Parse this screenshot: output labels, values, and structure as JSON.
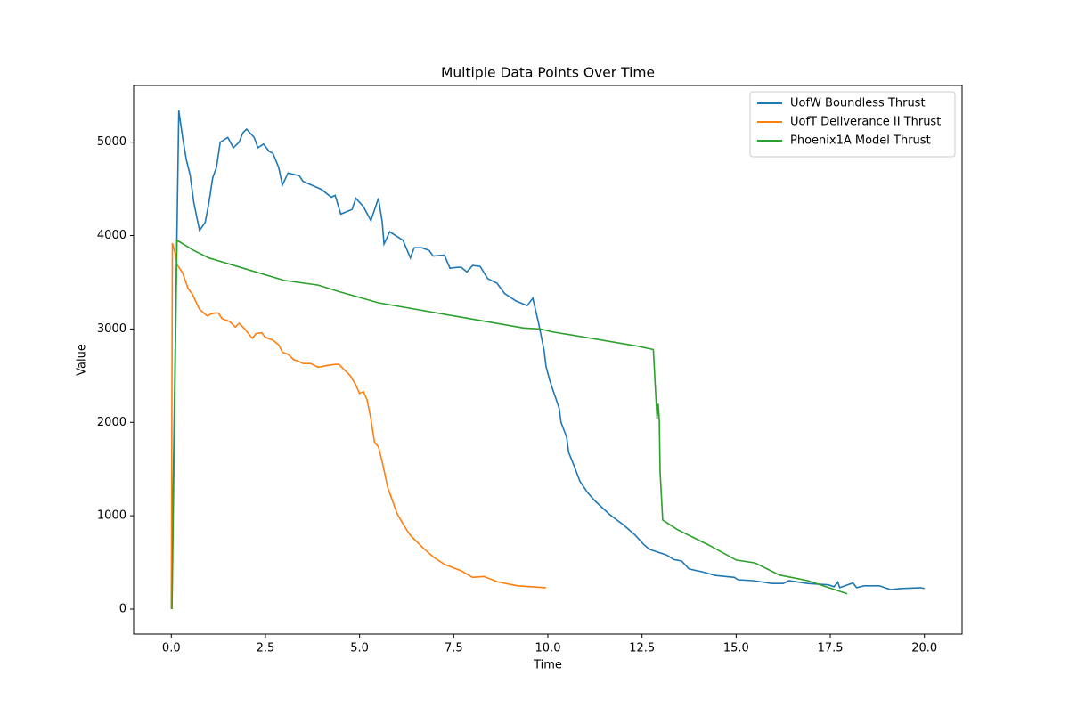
{
  "chart_data": {
    "type": "line",
    "title": "Multiple Data Points Over Time",
    "x_label": "Time",
    "y_label": "Value",
    "xlim": [
      -1.0,
      21.0
    ],
    "ylim": [
      -267,
      5607
    ],
    "xticks": [
      {
        "value": 0,
        "label": "0.0"
      },
      {
        "value": 2.5,
        "label": "2.5"
      },
      {
        "value": 5,
        "label": "5.0"
      },
      {
        "value": 7.5,
        "label": "7.5"
      },
      {
        "value": 10,
        "label": "10.0"
      },
      {
        "value": 12.5,
        "label": "12.5"
      },
      {
        "value": 15,
        "label": "15.0"
      },
      {
        "value": 17.5,
        "label": "17.5"
      },
      {
        "value": 20,
        "label": "20.0"
      }
    ],
    "yticks": [
      0,
      1000,
      2000,
      3000,
      4000,
      5000
    ],
    "grid": false,
    "legend": "upper right",
    "series": [
      {
        "name": "UofW Boundless Thrust",
        "color": "#1f77b4",
        "x": [
          0,
          0.2,
          0.3,
          0.4,
          0.5,
          0.6,
          0.75,
          0.9,
          1.0,
          1.1,
          1.2,
          1.3,
          1.5,
          1.65,
          1.8,
          1.9,
          2.0,
          2.2,
          2.3,
          2.45,
          2.6,
          2.7,
          2.85,
          2.95,
          3.1,
          3.4,
          3.5,
          3.9,
          4.0,
          4.25,
          4.35,
          4.5,
          4.8,
          4.9,
          5.1,
          5.3,
          5.5,
          5.6,
          5.65,
          5.8,
          6.15,
          6.35,
          6.45,
          6.65,
          6.85,
          6.95,
          7.25,
          7.4,
          7.6,
          7.7,
          7.85,
          8.0,
          8.2,
          8.4,
          8.65,
          8.85,
          9.15,
          9.45,
          9.6,
          9.75,
          9.9,
          9.95,
          10.05,
          10.15,
          10.25,
          10.3,
          10.35,
          10.5,
          10.55,
          10.7,
          10.85,
          11.05,
          11.25,
          11.65,
          12.0,
          12.3,
          12.55,
          12.7,
          13.15,
          13.35,
          13.55,
          13.75,
          14.1,
          14.45,
          14.95,
          15.05,
          15.45,
          15.95,
          16.25,
          16.4,
          16.9,
          17.45,
          17.6,
          17.7,
          17.75,
          18.1,
          18.2,
          18.4,
          18.8,
          19.1,
          19.35,
          19.9,
          20.0
        ],
        "values": [
          0,
          5340,
          5050,
          4810,
          4650,
          4350,
          4055,
          4140,
          4350,
          4620,
          4730,
          5000,
          5050,
          4940,
          5000,
          5100,
          5140,
          5050,
          4940,
          4980,
          4900,
          4880,
          4730,
          4540,
          4670,
          4640,
          4580,
          4510,
          4490,
          4410,
          4430,
          4230,
          4280,
          4400,
          4310,
          4160,
          4400,
          4150,
          3910,
          4040,
          3950,
          3760,
          3870,
          3870,
          3840,
          3780,
          3790,
          3650,
          3660,
          3660,
          3610,
          3680,
          3670,
          3540,
          3490,
          3380,
          3300,
          3250,
          3330,
          3070,
          2770,
          2600,
          2450,
          2330,
          2210,
          2150,
          2000,
          1840,
          1680,
          1530,
          1370,
          1250,
          1160,
          1010,
          905,
          800,
          690,
          640,
          580,
          530,
          515,
          430,
          400,
          360,
          340,
          315,
          305,
          275,
          275,
          305,
          275,
          260,
          240,
          290,
          230,
          280,
          230,
          250,
          250,
          210,
          220,
          230,
          220
        ]
      },
      {
        "name": "UofT Deliverance II Thrust",
        "color": "#ff7f0e",
        "x": [
          0,
          0.03,
          0.1,
          0.15,
          0.3,
          0.45,
          0.55,
          0.75,
          0.95,
          1.05,
          1.15,
          1.25,
          1.35,
          1.55,
          1.7,
          1.8,
          1.95,
          2.15,
          2.25,
          2.4,
          2.5,
          2.7,
          2.85,
          2.95,
          3.1,
          3.25,
          3.35,
          3.5,
          3.7,
          3.9,
          4.15,
          4.35,
          4.45,
          4.6,
          4.75,
          4.9,
          5.0,
          5.1,
          5.2,
          5.3,
          5.4,
          5.5,
          5.6,
          5.75,
          6.0,
          6.2,
          6.35,
          6.7,
          6.95,
          7.25,
          7.7,
          8.0,
          8.3,
          8.65,
          9.0,
          9.2,
          9.55,
          9.95
        ],
        "values": [
          0,
          3920,
          3810,
          3690,
          3600,
          3430,
          3380,
          3210,
          3140,
          3160,
          3170,
          3170,
          3110,
          3080,
          3020,
          3060,
          3000,
          2900,
          2950,
          2960,
          2910,
          2880,
          2830,
          2750,
          2730,
          2670,
          2660,
          2630,
          2630,
          2590,
          2610,
          2620,
          2620,
          2560,
          2500,
          2400,
          2310,
          2330,
          2240,
          2040,
          1780,
          1740,
          1580,
          1300,
          1020,
          880,
          790,
          650,
          560,
          480,
          410,
          340,
          350,
          295,
          265,
          250,
          240,
          230
        ]
      },
      {
        "name": "Phoenix1A Model Thrust",
        "color": "#2ca02c",
        "x": [
          0.02,
          0.15,
          0.6,
          1.0,
          2.0,
          3.0,
          3.9,
          4.45,
          5.5,
          7.5,
          9.35,
          9.8,
          10.1,
          11.0,
          12.4,
          12.8,
          12.85,
          12.9,
          12.93,
          12.96,
          12.98,
          13.05,
          13.45,
          14.25,
          15.0,
          15.5,
          16.15,
          16.9,
          17.95
        ],
        "values": [
          0,
          3950,
          3840,
          3760,
          3640,
          3520,
          3470,
          3400,
          3280,
          3140,
          3010,
          3000,
          2970,
          2910,
          2815,
          2780,
          2400,
          2040,
          2200,
          2020,
          1470,
          955,
          850,
          690,
          525,
          495,
          365,
          305,
          165
        ]
      }
    ]
  }
}
